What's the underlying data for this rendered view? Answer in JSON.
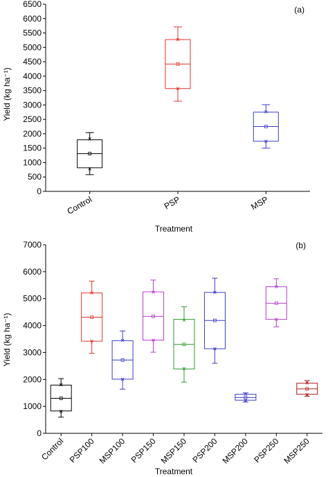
{
  "chart_data": [
    {
      "type": "box",
      "panel_label": "(a)",
      "xlabel": "Treatment",
      "ylabel": "Yield (kg ha⁻¹)",
      "ylim": [
        0,
        6500
      ],
      "yticks": [
        0,
        500,
        1000,
        1500,
        2000,
        2500,
        3000,
        3500,
        4000,
        4500,
        5000,
        5500,
        6000,
        6500
      ],
      "categories": [
        "Control",
        "PSP",
        "MSP"
      ],
      "boxes": [
        {
          "name": "Control",
          "color": "#000000",
          "whisker_low": 580,
          "q1": 820,
          "median": 1310,
          "mean": 1310,
          "q3": 1790,
          "whisker_high": 2040,
          "p_low": 780,
          "p_high": 1820
        },
        {
          "name": "PSP",
          "color": "#e8312f",
          "whisker_low": 3130,
          "q1": 3570,
          "median": 4420,
          "mean": 4420,
          "q3": 5270,
          "whisker_high": 5710,
          "p_low": 3570,
          "p_high": 5270
        },
        {
          "name": "MSP",
          "color": "#3c3cc8",
          "whisker_low": 1500,
          "q1": 1740,
          "median": 2250,
          "mean": 2250,
          "q3": 2750,
          "whisker_high": 3010,
          "p_low": 1740,
          "p_high": 2760
        }
      ]
    },
    {
      "type": "box",
      "panel_label": "(b)",
      "xlabel": "Treatment",
      "ylabel": "Yield (kg ha⁻¹)",
      "ylim": [
        0,
        7000
      ],
      "yticks": [
        0,
        1000,
        2000,
        3000,
        4000,
        5000,
        6000,
        7000
      ],
      "categories": [
        "Control",
        "PSP100",
        "MSP100",
        "PSP150",
        "MSP150",
        "PSP200",
        "MSP200",
        "PSP250",
        "MSP250"
      ],
      "boxes": [
        {
          "name": "Control",
          "color": "#000000",
          "whisker_low": 600,
          "q1": 830,
          "median": 1300,
          "mean": 1300,
          "q3": 1790,
          "whisker_high": 2030,
          "p_low": 820,
          "p_high": 1800
        },
        {
          "name": "PSP100",
          "color": "#e8312f",
          "whisker_low": 2970,
          "q1": 3420,
          "median": 4310,
          "mean": 4310,
          "q3": 5210,
          "whisker_high": 5650,
          "p_low": 3420,
          "p_high": 5210
        },
        {
          "name": "MSP100",
          "color": "#3c3cc8",
          "whisker_low": 1640,
          "q1": 2010,
          "median": 2720,
          "mean": 2720,
          "q3": 3440,
          "whisker_high": 3800,
          "p_low": 2010,
          "p_high": 3450
        },
        {
          "name": "PSP150",
          "color": "#b040c8",
          "whisker_low": 3010,
          "q1": 3460,
          "median": 4340,
          "mean": 4340,
          "q3": 5250,
          "whisker_high": 5690,
          "p_low": 3460,
          "p_high": 5240
        },
        {
          "name": "MSP150",
          "color": "#2a9a2a",
          "whisker_low": 1900,
          "q1": 2390,
          "median": 3300,
          "mean": 3300,
          "q3": 4230,
          "whisker_high": 4700,
          "p_low": 2400,
          "p_high": 4200
        },
        {
          "name": "PSP200",
          "color": "#3c3cc8",
          "whisker_low": 2600,
          "q1": 3140,
          "median": 4190,
          "mean": 4190,
          "q3": 5230,
          "whisker_high": 5760,
          "p_low": 3140,
          "p_high": 5230
        },
        {
          "name": "MSP200",
          "color": "#3c3cc8",
          "whisker_low": 1160,
          "q1": 1230,
          "median": 1330,
          "mean": 1330,
          "q3": 1450,
          "whisker_high": 1500,
          "p_low": 1220,
          "p_high": 1460
        },
        {
          "name": "PSP250",
          "color": "#b040c8",
          "whisker_low": 3950,
          "q1": 4230,
          "median": 4830,
          "mean": 4830,
          "q3": 5440,
          "whisker_high": 5740,
          "p_low": 4230,
          "p_high": 5440
        },
        {
          "name": "MSP250",
          "color": "#b01818",
          "whisker_low": 1370,
          "q1": 1450,
          "median": 1650,
          "mean": 1650,
          "q3": 1860,
          "whisker_high": 1960,
          "p_low": 1440,
          "p_high": 1870
        }
      ]
    }
  ]
}
